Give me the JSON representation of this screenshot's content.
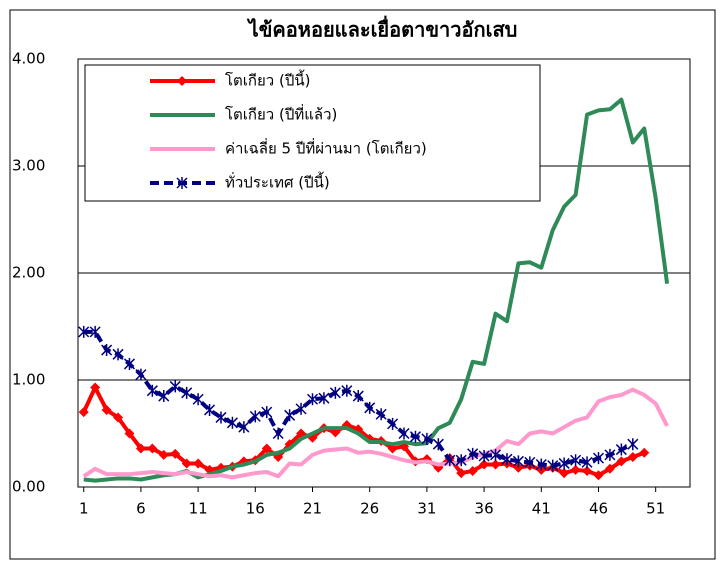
{
  "chart_data": {
    "type": "line",
    "title": "ไข้คอหอยและเยื่อตาขาวอักเสบ",
    "x": [
      1,
      2,
      3,
      4,
      5,
      6,
      7,
      8,
      9,
      10,
      11,
      12,
      13,
      14,
      15,
      16,
      17,
      18,
      19,
      20,
      21,
      22,
      23,
      24,
      25,
      26,
      27,
      28,
      29,
      30,
      31,
      32,
      33,
      34,
      35,
      36,
      37,
      38,
      39,
      40,
      41,
      42,
      43,
      44,
      45,
      46,
      47,
      48,
      49,
      50,
      51,
      52
    ],
    "xlim": [
      0.5,
      54
    ],
    "xticks": [
      1,
      6,
      11,
      16,
      21,
      26,
      31,
      36,
      41,
      46,
      51
    ],
    "ylim": [
      0,
      4
    ],
    "yticks": [
      {
        "value": 0,
        "label": "0.00"
      },
      {
        "value": 1,
        "label": "1.00"
      },
      {
        "value": 2,
        "label": "2.00"
      },
      {
        "value": 3,
        "label": "3.00"
      },
      {
        "value": 4,
        "label": "4.00"
      }
    ],
    "grid": true,
    "legend": "top-left",
    "series": [
      {
        "name": "โตเกียว (ปีนี้)",
        "color": "#ff0000",
        "marker": "diamond",
        "line_style": "solid",
        "values": [
          0.7,
          0.93,
          0.72,
          0.65,
          0.5,
          0.36,
          0.36,
          0.3,
          0.31,
          0.22,
          0.22,
          0.16,
          0.18,
          0.19,
          0.24,
          0.25,
          0.36,
          0.28,
          0.4,
          0.5,
          0.46,
          0.55,
          0.51,
          0.58,
          0.54,
          0.45,
          0.43,
          0.36,
          0.38,
          0.24,
          0.26,
          0.18,
          0.27,
          0.13,
          0.15,
          0.21,
          0.21,
          0.22,
          0.18,
          0.2,
          0.16,
          0.18,
          0.13,
          0.16,
          0.15,
          0.11,
          0.17,
          0.24,
          0.28,
          0.32,
          null,
          null
        ]
      },
      {
        "name": "โตเกียว (ปีที่แล้ว)",
        "color": "#2e8b57",
        "marker": "none",
        "line_style": "solid",
        "values": [
          0.07,
          0.06,
          0.07,
          0.08,
          0.08,
          0.07,
          0.09,
          0.11,
          0.12,
          0.15,
          0.09,
          0.12,
          0.15,
          0.19,
          0.21,
          0.24,
          0.3,
          0.32,
          0.36,
          0.45,
          0.5,
          0.55,
          0.55,
          0.55,
          0.5,
          0.42,
          0.42,
          0.4,
          0.42,
          0.4,
          0.41,
          0.55,
          0.6,
          0.82,
          1.17,
          1.15,
          1.62,
          1.55,
          2.09,
          2.1,
          2.05,
          2.4,
          2.62,
          2.73,
          3.48,
          3.52,
          3.53,
          3.62,
          3.22,
          3.35,
          2.7,
          1.9
        ]
      },
      {
        "name": "ค่าเฉลี่ย 5 ปีที่ผ่านมา (โตเกียว)",
        "color": "#ff99cc",
        "marker": "none",
        "line_style": "solid",
        "values": [
          0.1,
          0.17,
          0.12,
          0.12,
          0.12,
          0.13,
          0.14,
          0.13,
          0.12,
          0.14,
          0.12,
          0.1,
          0.11,
          0.09,
          0.11,
          0.13,
          0.14,
          0.1,
          0.22,
          0.21,
          0.3,
          0.34,
          0.35,
          0.36,
          0.32,
          0.33,
          0.31,
          0.28,
          0.25,
          0.23,
          0.24,
          0.21,
          0.22,
          0.23,
          0.28,
          0.31,
          0.34,
          0.43,
          0.4,
          0.5,
          0.52,
          0.5,
          0.56,
          0.62,
          0.65,
          0.8,
          0.84,
          0.86,
          0.91,
          0.86,
          0.78,
          0.57
        ]
      },
      {
        "name": "ทั่วประเทศ (ปีนี้)",
        "color": "#000080",
        "marker": "asterisk",
        "line_style": "dashed",
        "values": [
          1.45,
          1.45,
          1.28,
          1.24,
          1.15,
          1.05,
          0.9,
          0.85,
          0.94,
          0.88,
          0.82,
          0.72,
          0.65,
          0.6,
          0.56,
          0.66,
          0.7,
          0.5,
          0.67,
          0.73,
          0.82,
          0.83,
          0.88,
          0.9,
          0.85,
          0.74,
          0.68,
          0.59,
          0.5,
          0.47,
          0.45,
          0.4,
          0.25,
          0.25,
          0.31,
          0.29,
          0.3,
          0.26,
          0.24,
          0.23,
          0.21,
          0.2,
          0.22,
          0.25,
          0.23,
          0.27,
          0.3,
          0.35,
          0.4,
          null,
          null,
          null
        ]
      }
    ]
  }
}
